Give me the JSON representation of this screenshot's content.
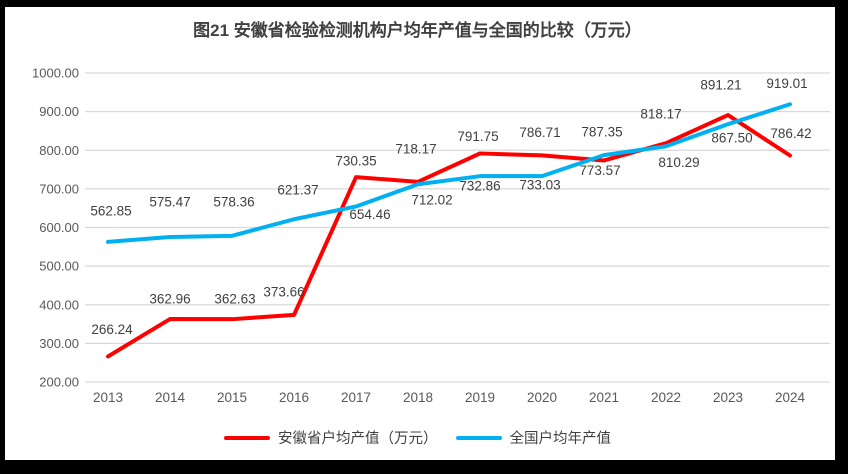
{
  "title": "图21 安徽省检验检测机构户均年产值与全国的比较（万元）",
  "chart_data": {
    "type": "line",
    "x": [
      "2013",
      "2014",
      "2015",
      "2016",
      "2017",
      "2018",
      "2019",
      "2020",
      "2021",
      "2022",
      "2023",
      "2024"
    ],
    "series": [
      {
        "id": "anhui",
        "name": "安徽省户均产值（万元）",
        "color": "#FF0000",
        "values": [
          266.24,
          362.96,
          362.63,
          373.66,
          730.35,
          718.17,
          791.75,
          786.71,
          773.57,
          818.17,
          891.21,
          786.42
        ],
        "label_offsets": [
          [
            4,
            -27
          ],
          [
            0,
            -20
          ],
          [
            3,
            -20
          ],
          [
            -10,
            -23
          ],
          [
            0,
            -16
          ],
          [
            -2,
            -33
          ],
          [
            -2,
            -17
          ],
          [
            -2,
            -23
          ],
          [
            -4,
            10
          ],
          [
            -5,
            -29
          ],
          [
            -7,
            -30
          ],
          [
            1,
            -22
          ]
        ]
      },
      {
        "id": "national",
        "name": "全国户均年产值",
        "color": "#00B0F0",
        "values": [
          562.85,
          575.47,
          578.36,
          621.37,
          654.46,
          712.02,
          732.86,
          733.03,
          787.35,
          810.29,
          867.5,
          919.01
        ],
        "label_offsets": [
          [
            3,
            -31
          ],
          [
            0,
            -35
          ],
          [
            2,
            -34
          ],
          [
            4,
            -29
          ],
          [
            14,
            8
          ],
          [
            14,
            16
          ],
          [
            0,
            10
          ],
          [
            -2,
            9
          ],
          [
            -2,
            -23
          ],
          [
            13,
            16
          ],
          [
            4,
            14
          ],
          [
            -3,
            -21
          ]
        ]
      }
    ],
    "ylim": [
      200,
      1000
    ],
    "yticks": [
      200,
      300,
      400,
      500,
      600,
      700,
      800,
      900,
      1000
    ],
    "ytick_decimals": 2,
    "value_label_decimals": 2,
    "grid": true,
    "legend_position": "bottom",
    "style": {
      "gridline_color": "#D9D9D9",
      "axis_label_color": "#595959",
      "data_label_color": "#404040",
      "title_color": "#404040",
      "series_line_width": 4,
      "frame_color": "#000000",
      "plot_background": "#FFFFFF"
    }
  },
  "legend": {
    "items": [
      {
        "label": "安徽省户均产值（万元）"
      },
      {
        "label": "全国户均年产值"
      }
    ]
  }
}
